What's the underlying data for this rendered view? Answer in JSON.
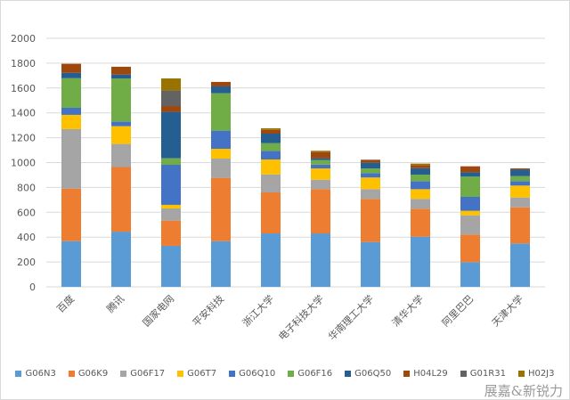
{
  "chart_data": {
    "type": "bar",
    "stacked": true,
    "title": "",
    "xlabel": "",
    "ylabel": "",
    "ylim": [
      0,
      2000
    ],
    "yticks": [
      0,
      200,
      400,
      600,
      800,
      1000,
      1200,
      1400,
      1600,
      1800,
      2000
    ],
    "grid": true,
    "legend_position": "bottom",
    "categories": [
      "百度",
      "腾讯",
      "国家电网",
      "平安科技",
      "浙江大学",
      "电子科技大学",
      "华南理工大学",
      "清华大学",
      "阿里巴巴",
      "天津大学"
    ],
    "series": [
      {
        "name": "G06N3",
        "color": "#5B9BD5",
        "values": [
          368,
          444,
          330,
          368,
          430,
          430,
          361,
          403,
          199,
          349
        ]
      },
      {
        "name": "G06K9",
        "color": "#ED7D31",
        "values": [
          423,
          520,
          203,
          509,
          330,
          356,
          347,
          226,
          222,
          291
        ]
      },
      {
        "name": "G06F17",
        "color": "#A5A5A5",
        "values": [
          478,
          186,
          98,
          155,
          145,
          76,
          78,
          79,
          155,
          79
        ]
      },
      {
        "name": "G06T7",
        "color": "#FFC000",
        "values": [
          115,
          143,
          29,
          79,
          120,
          91,
          94,
          78,
          36,
          96
        ]
      },
      {
        "name": "G06Q10",
        "color": "#4472C4",
        "values": [
          57,
          36,
          322,
          146,
          69,
          31,
          35,
          65,
          112,
          36
        ]
      },
      {
        "name": "G06F16",
        "color": "#70AD47",
        "values": [
          238,
          348,
          53,
          301,
          62,
          36,
          38,
          52,
          163,
          40
        ]
      },
      {
        "name": "G06Q50",
        "color": "#255E91",
        "values": [
          43,
          31,
          373,
          55,
          77,
          15,
          46,
          52,
          35,
          52
        ]
      },
      {
        "name": "H04L29",
        "color": "#9E480E",
        "values": [
          73,
          63,
          47,
          36,
          30,
          50,
          24,
          25,
          48,
          10
        ]
      },
      {
        "name": "G01R31",
        "color": "#636363",
        "values": [
          0,
          0,
          125,
          0,
          0,
          0,
          0,
          0,
          0,
          0
        ]
      },
      {
        "name": "H02J3",
        "color": "#997300",
        "values": [
          0,
          0,
          97,
          0,
          13,
          10,
          0,
          12,
          0,
          0
        ]
      }
    ]
  },
  "watermark": "展嘉&新锐力"
}
